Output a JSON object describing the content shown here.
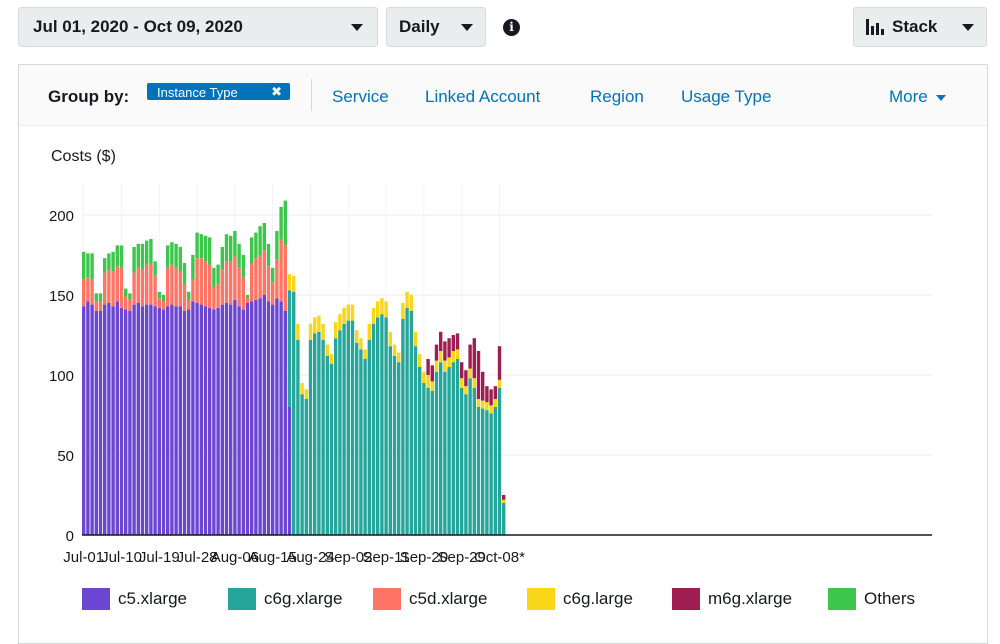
{
  "toolbar": {
    "date_range": "Jul 01, 2020 - Oct 09, 2020",
    "granularity": "Daily",
    "chart_style": "Stack"
  },
  "group_by": {
    "label": "Group by:",
    "selected": "Instance Type",
    "options": [
      "Service",
      "Linked Account",
      "Region",
      "Usage Type"
    ],
    "more": "More"
  },
  "chart_data": {
    "type": "bar",
    "stacked": true,
    "ylabel": "Costs ($)",
    "ylim": [
      0,
      220
    ],
    "yticks": [
      0,
      50,
      100,
      150,
      200
    ],
    "xtick_labels": [
      "Jul-01",
      "Jul-10",
      "Jul-19",
      "Jul-28",
      "Aug-06",
      "Aug-15",
      "Aug-24",
      "Sep-02",
      "Sep-11",
      "Sep-20",
      "Sep-29",
      "Oct-08*"
    ],
    "categories": [
      "2020-07-01",
      "2020-07-02",
      "2020-07-03",
      "2020-07-04",
      "2020-07-05",
      "2020-07-06",
      "2020-07-07",
      "2020-07-08",
      "2020-07-09",
      "2020-07-10",
      "2020-07-11",
      "2020-07-12",
      "2020-07-13",
      "2020-07-14",
      "2020-07-15",
      "2020-07-16",
      "2020-07-17",
      "2020-07-18",
      "2020-07-19",
      "2020-07-20",
      "2020-07-21",
      "2020-07-22",
      "2020-07-23",
      "2020-07-24",
      "2020-07-25",
      "2020-07-26",
      "2020-07-27",
      "2020-07-28",
      "2020-07-29",
      "2020-07-30",
      "2020-07-31",
      "2020-08-01",
      "2020-08-02",
      "2020-08-03",
      "2020-08-04",
      "2020-08-05",
      "2020-08-06",
      "2020-08-07",
      "2020-08-08",
      "2020-08-09",
      "2020-08-10",
      "2020-08-11",
      "2020-08-12",
      "2020-08-13",
      "2020-08-14",
      "2020-08-15",
      "2020-08-16",
      "2020-08-17",
      "2020-08-18",
      "2020-08-19",
      "2020-08-20",
      "2020-08-21",
      "2020-08-22",
      "2020-08-23",
      "2020-08-24",
      "2020-08-25",
      "2020-08-26",
      "2020-08-27",
      "2020-08-28",
      "2020-08-29",
      "2020-08-30",
      "2020-08-31",
      "2020-09-01",
      "2020-09-02",
      "2020-09-03",
      "2020-09-04",
      "2020-09-05",
      "2020-09-06",
      "2020-09-07",
      "2020-09-08",
      "2020-09-09",
      "2020-09-10",
      "2020-09-11",
      "2020-09-12",
      "2020-09-13",
      "2020-09-14",
      "2020-09-15",
      "2020-09-16",
      "2020-09-17",
      "2020-09-18",
      "2020-09-19",
      "2020-09-20",
      "2020-09-21",
      "2020-09-22",
      "2020-09-23",
      "2020-09-24",
      "2020-09-25",
      "2020-09-26",
      "2020-09-27",
      "2020-09-28",
      "2020-09-29",
      "2020-09-30",
      "2020-10-01",
      "2020-10-02",
      "2020-10-03",
      "2020-10-04",
      "2020-10-05",
      "2020-10-06",
      "2020-10-07",
      "2020-10-08",
      "2020-10-09"
    ],
    "series": [
      {
        "name": "c5.xlarge",
        "color": "#6a46d1",
        "values": [
          143,
          146,
          144,
          140,
          140,
          144,
          145,
          143,
          146,
          142,
          141,
          140,
          144,
          145,
          143,
          144,
          144,
          143,
          142,
          141,
          143,
          144,
          143,
          143,
          140,
          141,
          146,
          145,
          144,
          143,
          142,
          141,
          142,
          144,
          145,
          144,
          147,
          143,
          141,
          145,
          146,
          147,
          148,
          150,
          146,
          144,
          148,
          146,
          140,
          80,
          0,
          0,
          0,
          0,
          0,
          0,
          0,
          0,
          0,
          0,
          0,
          0,
          0,
          0,
          0,
          0,
          0,
          0,
          0,
          0,
          0,
          0,
          0,
          0,
          0,
          0,
          0,
          0,
          0,
          0,
          0,
          0,
          0,
          0,
          0,
          0,
          0,
          0,
          0,
          0,
          0,
          0,
          0,
          0,
          0,
          0,
          0,
          0,
          0,
          0,
          0
        ]
      },
      {
        "name": "c6g.xlarge",
        "color": "#26a69a",
        "values": [
          0,
          0,
          0,
          0,
          0,
          0,
          0,
          0,
          0,
          0,
          0,
          0,
          0,
          0,
          0,
          0,
          0,
          0,
          0,
          0,
          0,
          0,
          0,
          0,
          0,
          0,
          0,
          0,
          0,
          0,
          0,
          0,
          0,
          0,
          0,
          0,
          0,
          0,
          0,
          0,
          0,
          0,
          0,
          0,
          0,
          0,
          0,
          0,
          0,
          73,
          152,
          122,
          88,
          85,
          122,
          126,
          127,
          122,
          112,
          107,
          123,
          128,
          132,
          134,
          134,
          120,
          116,
          110,
          122,
          132,
          136,
          138,
          136,
          118,
          112,
          108,
          135,
          142,
          140,
          118,
          105,
          95,
          92,
          90,
          102,
          108,
          102,
          105,
          108,
          110,
          92,
          88,
          98,
          92,
          80,
          79,
          78,
          76,
          80,
          92,
          20
        ]
      },
      {
        "name": "c5d.xlarge",
        "color": "#ff7464",
        "values": [
          17,
          15,
          16,
          6,
          6,
          20,
          21,
          22,
          22,
          25,
          8,
          7,
          20,
          22,
          23,
          25,
          26,
          19,
          6,
          5,
          24,
          25,
          24,
          22,
          17,
          6,
          14,
          28,
          29,
          28,
          27,
          14,
          15,
          22,
          26,
          27,
          27,
          24,
          20,
          3,
          24,
          26,
          27,
          28,
          22,
          14,
          24,
          39,
          41,
          0,
          0,
          0,
          0,
          0,
          0,
          0,
          0,
          0,
          0,
          0,
          0,
          0,
          0,
          0,
          0,
          0,
          0,
          0,
          0,
          0,
          0,
          0,
          0,
          0,
          0,
          0,
          0,
          0,
          0,
          0,
          0,
          0,
          0,
          0,
          0,
          0,
          0,
          0,
          0,
          0,
          0,
          0,
          0,
          0,
          0,
          0,
          0,
          0,
          0,
          0,
          0
        ]
      },
      {
        "name": "c6g.large",
        "color": "#f9d617",
        "values": [
          0,
          0,
          0,
          0,
          0,
          0,
          0,
          0,
          0,
          0,
          0,
          0,
          0,
          0,
          0,
          0,
          0,
          0,
          0,
          0,
          0,
          0,
          0,
          0,
          0,
          0,
          0,
          0,
          0,
          0,
          0,
          0,
          0,
          0,
          0,
          0,
          0,
          0,
          0,
          0,
          0,
          0,
          0,
          0,
          0,
          0,
          0,
          0,
          0,
          10,
          10,
          10,
          7,
          6,
          10,
          10,
          10,
          10,
          7,
          6,
          10,
          10,
          10,
          10,
          10,
          8,
          7,
          6,
          10,
          10,
          10,
          10,
          10,
          9,
          7,
          6,
          10,
          10,
          10,
          9,
          8,
          7,
          8,
          6,
          7,
          7,
          7,
          6,
          7,
          6,
          6,
          5,
          6,
          6,
          5,
          5,
          5,
          5,
          5,
          5,
          2
        ]
      },
      {
        "name": "m6g.xlarge",
        "color": "#9f1d51",
        "values": [
          0,
          0,
          0,
          0,
          0,
          0,
          0,
          0,
          0,
          0,
          0,
          0,
          0,
          0,
          0,
          0,
          0,
          0,
          0,
          0,
          0,
          0,
          0,
          0,
          0,
          0,
          0,
          0,
          0,
          0,
          0,
          0,
          0,
          0,
          0,
          0,
          0,
          0,
          0,
          0,
          0,
          0,
          0,
          0,
          0,
          0,
          0,
          0,
          0,
          0,
          0,
          0,
          0,
          0,
          0,
          0,
          0,
          0,
          0,
          0,
          0,
          0,
          0,
          0,
          0,
          0,
          0,
          0,
          0,
          0,
          0,
          0,
          0,
          0,
          0,
          0,
          0,
          0,
          0,
          0,
          0,
          0,
          10,
          10,
          10,
          12,
          12,
          12,
          10,
          10,
          10,
          10,
          15,
          25,
          30,
          18,
          10,
          10,
          8,
          21,
          3
        ]
      },
      {
        "name": "Others",
        "color": "#3cc64b",
        "values": [
          17,
          15,
          16,
          5,
          5,
          9,
          10,
          12,
          13,
          14,
          5,
          4,
          16,
          15,
          16,
          15,
          15,
          9,
          4,
          4,
          14,
          14,
          15,
          15,
          13,
          5,
          15,
          16,
          15,
          16,
          17,
          12,
          12,
          14,
          17,
          16,
          16,
          15,
          14,
          2,
          16,
          16,
          18,
          17,
          14,
          9,
          18,
          20,
          28,
          0,
          0,
          0,
          0,
          0,
          0,
          0,
          0,
          0,
          0,
          0,
          0,
          0,
          0,
          0,
          0,
          0,
          0,
          0,
          0,
          0,
          0,
          0,
          0,
          0,
          0,
          0,
          0,
          0,
          0,
          0,
          0,
          0,
          0,
          0,
          0,
          0,
          0,
          0,
          0,
          0,
          0,
          0,
          0,
          0,
          0,
          0,
          0,
          0,
          0,
          0,
          0
        ]
      }
    ],
    "grid": true,
    "legend": "bottom"
  }
}
